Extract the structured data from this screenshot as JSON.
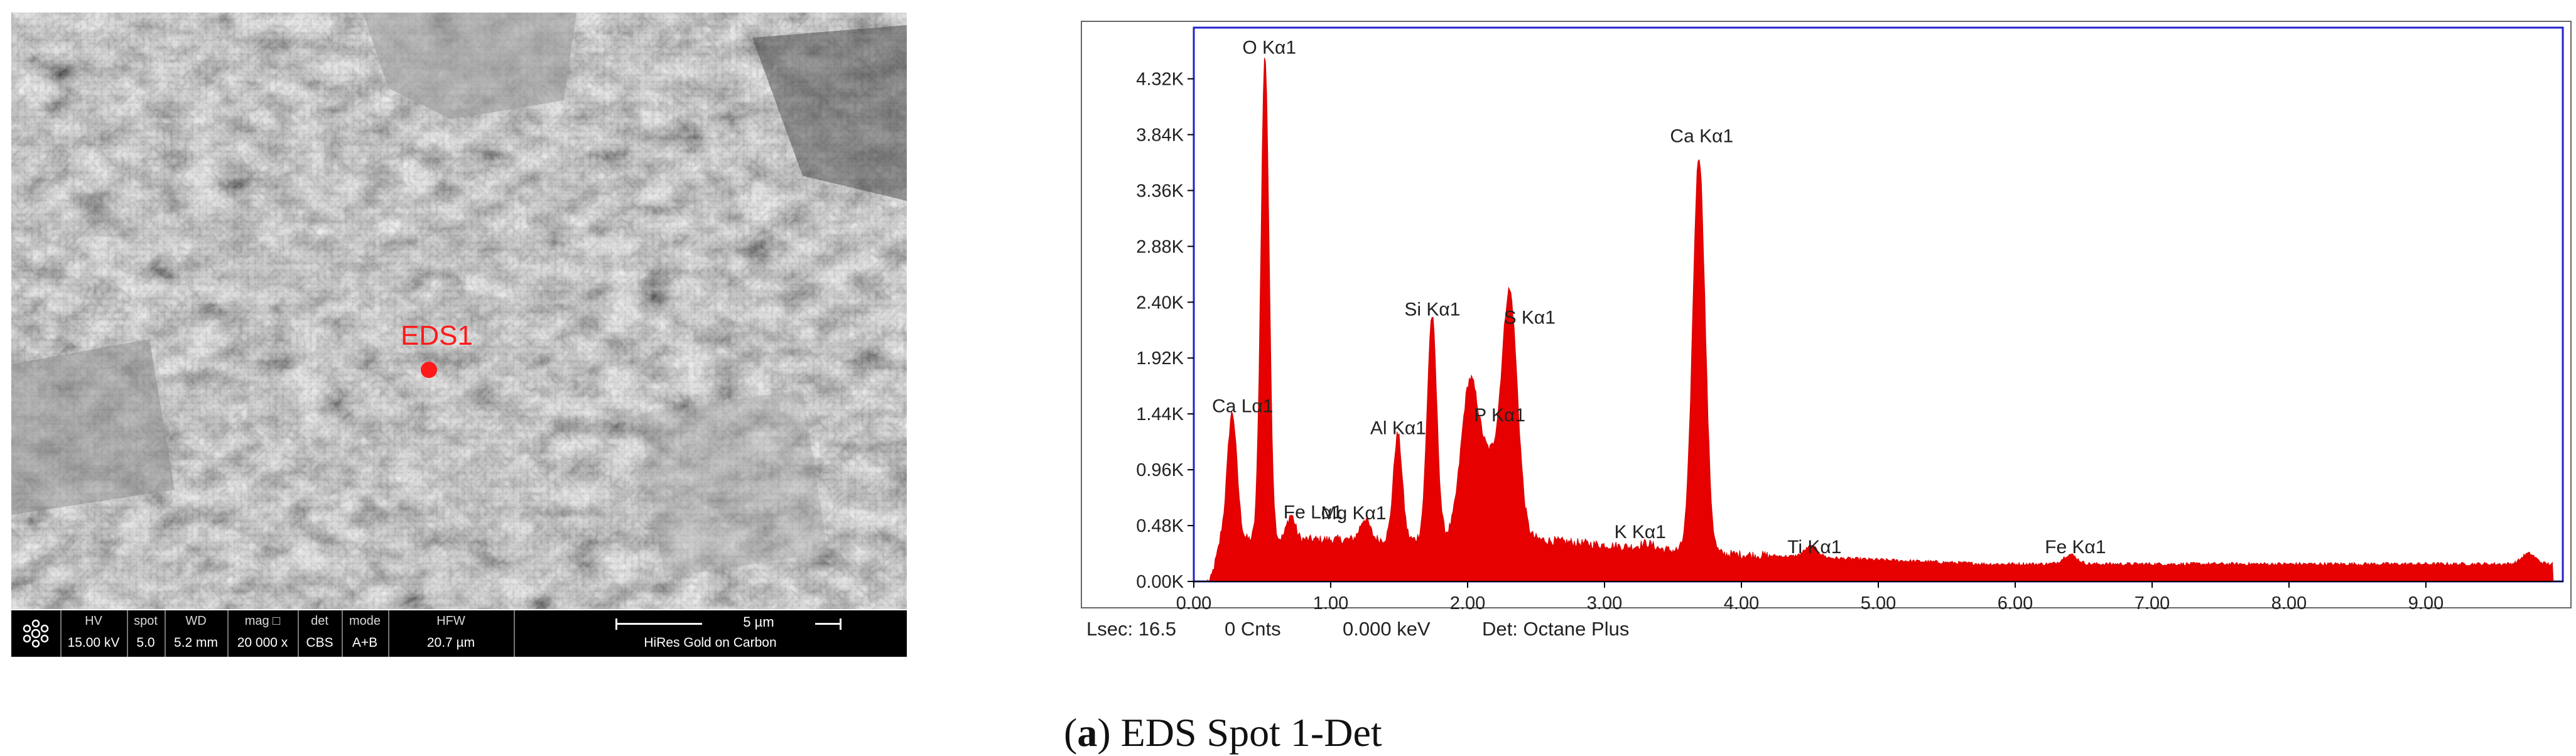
{
  "sem": {
    "spot_label": "EDS1",
    "bar": {
      "icon": "fei-logo-icon",
      "cells": [
        {
          "header": "HV",
          "value": "15.00 kV"
        },
        {
          "header": "spot",
          "value": "5.0"
        },
        {
          "header": "WD",
          "value": "5.2 mm"
        },
        {
          "header": "mag □",
          "value": "20 000 x"
        },
        {
          "header": "det",
          "value": "CBS"
        },
        {
          "header": "mode",
          "value": "A+B"
        },
        {
          "header": "HFW",
          "value": "20.7 µm"
        }
      ],
      "scale": "5 µm",
      "sample": "HiRes Gold on Carbon"
    }
  },
  "chart_data": {
    "type": "area",
    "series_color": "#e60000",
    "frame_color": "#2222cc",
    "xlim": [
      0,
      10
    ],
    "ylim": [
      0,
      4.76
    ],
    "x_unit": "keV",
    "y_unit": "K counts",
    "x_ticks": [
      "0.00",
      "1.00",
      "2.00",
      "3.00",
      "4.00",
      "5.00",
      "6.00",
      "7.00",
      "8.00",
      "9.00"
    ],
    "y_ticks": [
      "0.00K",
      "0.48K",
      "0.96K",
      "1.44K",
      "1.92K",
      "2.40K",
      "2.88K",
      "3.36K",
      "3.84K",
      "4.32K"
    ],
    "baseline": {
      "low": 0.36,
      "tail": 0.15
    },
    "peaks": [
      {
        "label": "Ca Lα1",
        "x": 0.28,
        "y": 1.38
      },
      {
        "label": "O  Kα1",
        "x": 0.52,
        "y": 4.45
      },
      {
        "label": "Fe Lα1",
        "x": 0.71,
        "y": 0.5
      },
      {
        "label": "Mg Kα1",
        "x": 1.25,
        "y": 0.47
      },
      {
        "label": "Al Kα1",
        "x": 1.49,
        "y": 1.2
      },
      {
        "label": "Si Kα1",
        "x": 1.74,
        "y": 2.21
      },
      {
        "label": "P  Kα1",
        "x": 2.01,
        "y": 1.3
      },
      {
        "label": "S  Kα1",
        "x": 2.31,
        "y": 2.14
      },
      {
        "label": "K  Kα1",
        "x": 3.31,
        "y": 0.33
      },
      {
        "label": "Ca Kα1",
        "x": 3.69,
        "y": 3.7
      },
      {
        "label": "Ti Kα1",
        "x": 4.51,
        "y": 0.2
      },
      {
        "label": "Fe Kα1",
        "x": 6.4,
        "y": 0.19
      }
    ],
    "status_bar": {
      "lsec": "Lsec: 16.5",
      "counts": "0 Cnts",
      "energy": "0.000 keV",
      "detector": "Det: Octane Plus"
    }
  },
  "caption": {
    "letter": "a",
    "text": " EDS Spot 1-Det"
  }
}
